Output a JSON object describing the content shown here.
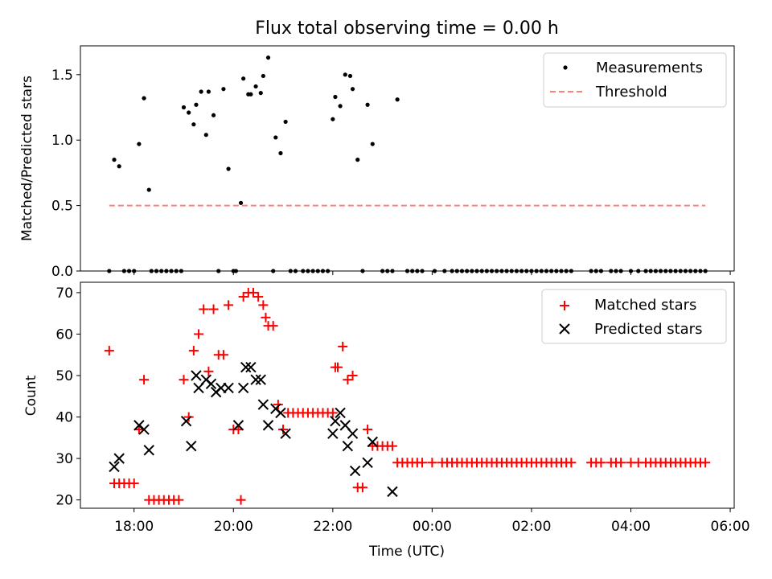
{
  "title": "Flux total observing time = 0.00 h",
  "chart_data": [
    {
      "type": "scatter",
      "ylabel": "Matched/Predicted stars",
      "xlabel": "",
      "xlim_hours": [
        16.92,
        30.08
      ],
      "ylim": [
        0,
        1.72
      ],
      "xticks": [
        18,
        20,
        22,
        24,
        26,
        28,
        30
      ],
      "xtick_labels": [
        "18:00",
        "20:00",
        "22:00",
        "00:00",
        "02:00",
        "04:00",
        "06:00"
      ],
      "yticks": [
        0.0,
        0.5,
        1.0,
        1.5
      ],
      "ytick_labels": [
        "0.0",
        "0.5",
        "1.0",
        "1.5"
      ],
      "legend_position": "top-right",
      "legend": [
        "Measurements",
        "Threshold"
      ],
      "series": [
        {
          "name": "Measurements",
          "marker": "dot",
          "color": "#000000",
          "points": [
            [
              17.5,
              0
            ],
            [
              17.6,
              0.85
            ],
            [
              17.7,
              0.8
            ],
            [
              17.8,
              0
            ],
            [
              17.9,
              0
            ],
            [
              18.0,
              0
            ],
            [
              18.1,
              0.97
            ],
            [
              18.2,
              1.32
            ],
            [
              18.3,
              0.62
            ],
            [
              18.35,
              0
            ],
            [
              18.45,
              0
            ],
            [
              18.55,
              0
            ],
            [
              18.65,
              0
            ],
            [
              18.75,
              0
            ],
            [
              18.85,
              0
            ],
            [
              18.95,
              0
            ],
            [
              19.0,
              1.25
            ],
            [
              19.1,
              1.21
            ],
            [
              19.2,
              1.12
            ],
            [
              19.25,
              1.27
            ],
            [
              19.35,
              1.37
            ],
            [
              19.45,
              1.04
            ],
            [
              19.5,
              1.37
            ],
            [
              19.6,
              1.19
            ],
            [
              19.7,
              0
            ],
            [
              19.8,
              1.39
            ],
            [
              19.9,
              0.78
            ],
            [
              20.0,
              0
            ],
            [
              20.05,
              0
            ],
            [
              20.15,
              0.52
            ],
            [
              20.2,
              1.47
            ],
            [
              20.3,
              1.35
            ],
            [
              20.35,
              1.35
            ],
            [
              20.45,
              1.41
            ],
            [
              20.55,
              1.36
            ],
            [
              20.6,
              1.49
            ],
            [
              20.7,
              1.63
            ],
            [
              20.8,
              0
            ],
            [
              20.85,
              1.02
            ],
            [
              20.95,
              0.9
            ],
            [
              21.05,
              1.14
            ],
            [
              21.15,
              0
            ],
            [
              21.25,
              0
            ],
            [
              21.4,
              0
            ],
            [
              21.5,
              0
            ],
            [
              21.6,
              0
            ],
            [
              21.7,
              0
            ],
            [
              21.8,
              0
            ],
            [
              21.9,
              0
            ],
            [
              22.0,
              1.16
            ],
            [
              22.05,
              1.33
            ],
            [
              22.15,
              1.26
            ],
            [
              22.25,
              1.5
            ],
            [
              22.35,
              1.49
            ],
            [
              22.4,
              1.39
            ],
            [
              22.5,
              0.85
            ],
            [
              22.6,
              0
            ],
            [
              22.7,
              1.27
            ],
            [
              22.8,
              0.97
            ],
            [
              23.0,
              0
            ],
            [
              23.1,
              0
            ],
            [
              23.2,
              0
            ],
            [
              23.3,
              1.31
            ],
            [
              23.5,
              0
            ],
            [
              23.6,
              0
            ],
            [
              23.7,
              0
            ],
            [
              23.8,
              0
            ],
            [
              24.05,
              0
            ],
            [
              24.25,
              0
            ],
            [
              24.4,
              0
            ],
            [
              24.5,
              0
            ],
            [
              24.6,
              0
            ],
            [
              24.7,
              0
            ],
            [
              24.8,
              0
            ],
            [
              24.9,
              0
            ],
            [
              25.0,
              0
            ],
            [
              25.1,
              0
            ],
            [
              25.2,
              0
            ],
            [
              25.3,
              0
            ],
            [
              25.4,
              0
            ],
            [
              25.5,
              0
            ],
            [
              25.6,
              0
            ],
            [
              25.7,
              0
            ],
            [
              25.8,
              0
            ],
            [
              25.9,
              0
            ],
            [
              26.0,
              0
            ],
            [
              26.1,
              0
            ],
            [
              26.2,
              0
            ],
            [
              26.3,
              0
            ],
            [
              26.4,
              0
            ],
            [
              26.5,
              0
            ],
            [
              26.6,
              0
            ],
            [
              26.7,
              0
            ],
            [
              26.8,
              0
            ],
            [
              27.2,
              0
            ],
            [
              27.3,
              0
            ],
            [
              27.4,
              0
            ],
            [
              27.6,
              0
            ],
            [
              27.7,
              0
            ],
            [
              27.8,
              0
            ],
            [
              28.0,
              0
            ],
            [
              28.15,
              0
            ],
            [
              28.3,
              0
            ],
            [
              28.4,
              0
            ],
            [
              28.5,
              0
            ],
            [
              28.6,
              0
            ],
            [
              28.7,
              0
            ],
            [
              28.8,
              0
            ],
            [
              28.9,
              0
            ],
            [
              29.0,
              0
            ],
            [
              29.1,
              0
            ],
            [
              29.2,
              0
            ],
            [
              29.3,
              0
            ],
            [
              29.4,
              0
            ],
            [
              29.5,
              0
            ]
          ]
        },
        {
          "name": "Threshold",
          "style": "dashed",
          "color": "#ff7f7f",
          "points": [
            [
              17.5,
              0.5
            ],
            [
              29.5,
              0.5
            ]
          ]
        }
      ]
    },
    {
      "type": "scatter",
      "ylabel": "Count",
      "xlabel": "Time (UTC)",
      "xlim_hours": [
        16.92,
        30.08
      ],
      "ylim": [
        18,
        72.5
      ],
      "xticks": [
        18,
        20,
        22,
        24,
        26,
        28,
        30
      ],
      "xtick_labels": [
        "18:00",
        "20:00",
        "22:00",
        "00:00",
        "02:00",
        "04:00",
        "06:00"
      ],
      "yticks": [
        20,
        30,
        40,
        50,
        60,
        70
      ],
      "ytick_labels": [
        "20",
        "30",
        "40",
        "50",
        "60",
        "70"
      ],
      "legend_position": "top-right",
      "legend": [
        "Matched stars",
        "Predicted stars"
      ],
      "series": [
        {
          "name": "Matched stars",
          "marker": "plus",
          "color": "#ff0000",
          "points": [
            [
              17.5,
              56
            ],
            [
              17.6,
              24
            ],
            [
              17.7,
              24
            ],
            [
              17.8,
              24
            ],
            [
              17.9,
              24
            ],
            [
              18.0,
              24
            ],
            [
              18.1,
              37
            ],
            [
              18.2,
              49
            ],
            [
              18.3,
              20
            ],
            [
              18.4,
              20
            ],
            [
              18.5,
              20
            ],
            [
              18.6,
              20
            ],
            [
              18.7,
              20
            ],
            [
              18.8,
              20
            ],
            [
              18.9,
              20
            ],
            [
              19.0,
              49
            ],
            [
              19.1,
              40
            ],
            [
              19.2,
              56
            ],
            [
              19.3,
              60
            ],
            [
              19.4,
              66
            ],
            [
              19.5,
              51
            ],
            [
              19.6,
              66
            ],
            [
              19.7,
              55
            ],
            [
              19.8,
              55
            ],
            [
              19.9,
              67
            ],
            [
              20.0,
              37
            ],
            [
              20.1,
              37
            ],
            [
              20.15,
              20
            ],
            [
              20.2,
              69
            ],
            [
              20.3,
              70
            ],
            [
              20.4,
              70
            ],
            [
              20.5,
              69
            ],
            [
              20.6,
              67
            ],
            [
              20.65,
              64
            ],
            [
              20.7,
              62
            ],
            [
              20.8,
              62
            ],
            [
              20.9,
              43
            ],
            [
              21.0,
              37
            ],
            [
              21.1,
              41
            ],
            [
              21.2,
              41
            ],
            [
              21.3,
              41
            ],
            [
              21.4,
              41
            ],
            [
              21.5,
              41
            ],
            [
              21.6,
              41
            ],
            [
              21.7,
              41
            ],
            [
              21.8,
              41
            ],
            [
              21.9,
              41
            ],
            [
              22.0,
              41
            ],
            [
              22.05,
              52
            ],
            [
              22.1,
              52
            ],
            [
              22.2,
              57
            ],
            [
              22.3,
              49
            ],
            [
              22.4,
              50
            ],
            [
              22.5,
              23
            ],
            [
              22.6,
              23
            ],
            [
              22.7,
              37
            ],
            [
              22.8,
              33
            ],
            [
              22.9,
              33
            ],
            [
              23.0,
              33
            ],
            [
              23.1,
              33
            ],
            [
              23.2,
              33
            ],
            [
              23.3,
              29
            ],
            [
              23.4,
              29
            ],
            [
              23.5,
              29
            ],
            [
              23.6,
              29
            ],
            [
              23.7,
              29
            ],
            [
              23.8,
              29
            ],
            [
              24.0,
              29
            ],
            [
              24.2,
              29
            ],
            [
              24.3,
              29
            ],
            [
              24.4,
              29
            ],
            [
              24.5,
              29
            ],
            [
              24.6,
              29
            ],
            [
              24.7,
              29
            ],
            [
              24.8,
              29
            ],
            [
              24.9,
              29
            ],
            [
              25.0,
              29
            ],
            [
              25.1,
              29
            ],
            [
              25.2,
              29
            ],
            [
              25.3,
              29
            ],
            [
              25.4,
              29
            ],
            [
              25.5,
              29
            ],
            [
              25.6,
              29
            ],
            [
              25.7,
              29
            ],
            [
              25.8,
              29
            ],
            [
              25.9,
              29
            ],
            [
              26.0,
              29
            ],
            [
              26.1,
              29
            ],
            [
              26.2,
              29
            ],
            [
              26.3,
              29
            ],
            [
              26.4,
              29
            ],
            [
              26.5,
              29
            ],
            [
              26.6,
              29
            ],
            [
              26.7,
              29
            ],
            [
              26.8,
              29
            ],
            [
              27.2,
              29
            ],
            [
              27.3,
              29
            ],
            [
              27.4,
              29
            ],
            [
              27.6,
              29
            ],
            [
              27.7,
              29
            ],
            [
              27.8,
              29
            ],
            [
              28.0,
              29
            ],
            [
              28.15,
              29
            ],
            [
              28.3,
              29
            ],
            [
              28.4,
              29
            ],
            [
              28.5,
              29
            ],
            [
              28.6,
              29
            ],
            [
              28.7,
              29
            ],
            [
              28.8,
              29
            ],
            [
              28.9,
              29
            ],
            [
              29.0,
              29
            ],
            [
              29.1,
              29
            ],
            [
              29.2,
              29
            ],
            [
              29.3,
              29
            ],
            [
              29.4,
              29
            ],
            [
              29.5,
              29
            ]
          ]
        },
        {
          "name": "Predicted stars",
          "marker": "x",
          "color": "#000000",
          "points": [
            [
              17.6,
              28
            ],
            [
              17.7,
              30
            ],
            [
              18.1,
              38
            ],
            [
              18.2,
              37
            ],
            [
              18.3,
              32
            ],
            [
              19.05,
              39
            ],
            [
              19.15,
              33
            ],
            [
              19.25,
              50
            ],
            [
              19.3,
              47
            ],
            [
              19.45,
              49
            ],
            [
              19.55,
              48
            ],
            [
              19.65,
              46
            ],
            [
              19.75,
              47
            ],
            [
              19.9,
              47
            ],
            [
              20.1,
              38
            ],
            [
              20.2,
              47
            ],
            [
              20.25,
              52
            ],
            [
              20.35,
              52
            ],
            [
              20.45,
              49
            ],
            [
              20.55,
              49
            ],
            [
              20.6,
              43
            ],
            [
              20.7,
              38
            ],
            [
              20.85,
              42
            ],
            [
              20.95,
              41
            ],
            [
              21.05,
              36
            ],
            [
              22.0,
              36
            ],
            [
              22.05,
              39
            ],
            [
              22.15,
              41
            ],
            [
              22.25,
              38
            ],
            [
              22.3,
              33
            ],
            [
              22.4,
              36
            ],
            [
              22.45,
              27
            ],
            [
              22.7,
              29
            ],
            [
              22.8,
              34
            ],
            [
              23.2,
              22
            ]
          ]
        }
      ]
    }
  ]
}
